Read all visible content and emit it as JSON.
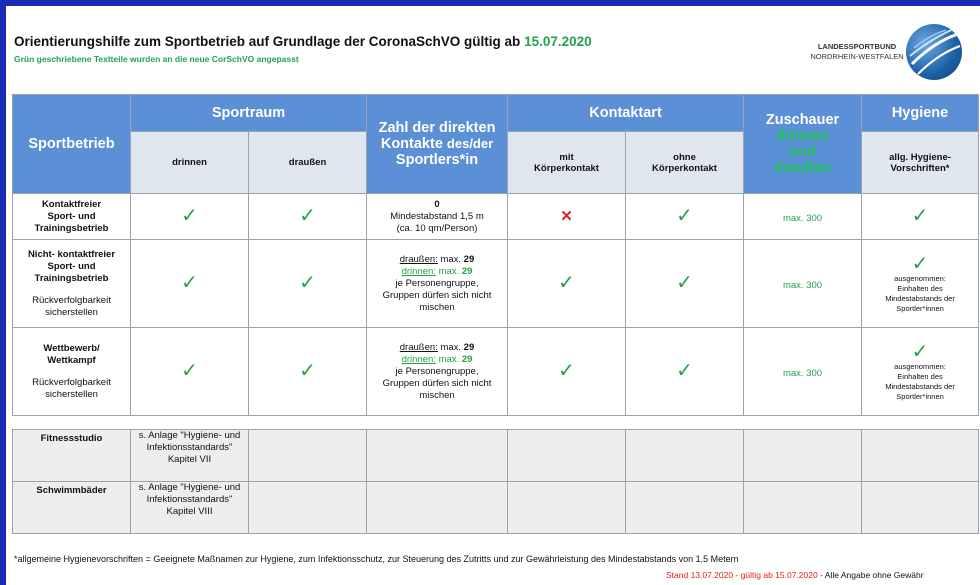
{
  "title_main": "Orientierungshilfe zum Sportbetrieb auf Grundlage der CoronaSchVO gültig ab",
  "title_date": "15.07.2020",
  "subtitle": "Grün geschriebene Textteile wurden an die neue CorSchVO angepasst",
  "logo": {
    "line1": "LANDESSPORTBUND",
    "line2": "NORDRHEIN-WESTFALEN"
  },
  "colors": {
    "header_blue": "#5b8fd6",
    "green": "#22a34a",
    "red": "#e0231c",
    "frame": "#1a2bb8"
  },
  "headers": {
    "sportbetrieb": "Sportbetrieb",
    "sportraum": "Sportraum",
    "kontakte_1": "Zahl der direkten",
    "kontakte_2": "Kontakte",
    "kontakte_3": "des/der",
    "kontakte_4": "Sportlers*in",
    "kontaktart": "Kontaktart",
    "zuschauer": "Zuschauer",
    "zuschauer_grn1": "drinnen",
    "zuschauer_grn2": "und",
    "zuschauer_grn3": "draußen",
    "hygiene": "Hygiene"
  },
  "subheaders": {
    "drinnen": "drinnen",
    "draussen": "draußen",
    "mit_1": "mit",
    "mit_2": "Körperkontakt",
    "ohne_1": "ohne",
    "ohne_2": "Körperkontakt",
    "hyg_1": "allg. Hygiene-",
    "hyg_2": "Vorschriften*"
  },
  "rows": [
    {
      "label_1": "Kontaktfreier",
      "label_2": "Sport- und",
      "label_3": "Trainingsbetrieb",
      "kontakte_value": "0",
      "kontakte_l2": "Mindestabstand 1,5 m",
      "kontakte_l3": "(ca. 10 qm/Person)",
      "zuschauer": "max. 300"
    },
    {
      "label_1": "Nicht- kontaktfreier",
      "label_2": "Sport- und",
      "label_3": "Trainingsbetrieb",
      "note_1": "Rückverfolgbarkeit",
      "note_2": "sicherstellen",
      "out_label": "draußen:",
      "out_val_pre": "max.",
      "out_val": "29",
      "in_label": "drinnen:",
      "in_val_pre": "max.",
      "in_val": "29",
      "group_1": "je Personengruppe,",
      "group_2": "Gruppen dürfen sich nicht",
      "group_3": "mischen",
      "zuschauer": "max. 300",
      "hyg_1": "ausgenommen:",
      "hyg_2": "Einhalten des",
      "hyg_3": "Mindestabstands der",
      "hyg_4": "Sportler*innen"
    },
    {
      "label_1": "Wettbewerb/",
      "label_2": "Wettkampf",
      "note_1": "Rückverfolgbarkeit",
      "note_2": "sicherstellen",
      "out_label": "draußen:",
      "out_val_pre": "max.",
      "out_val": "29",
      "in_label": "drinnen:",
      "in_val_pre": "max.",
      "in_val": "29",
      "group_1": "je Personengruppe,",
      "group_2": "Gruppen dürfen sich nicht",
      "group_3": "mischen",
      "zuschauer": "max. 300",
      "hyg_1": "ausgenommen:",
      "hyg_2": "Einhalten des",
      "hyg_3": "Mindestabstands der",
      "hyg_4": "Sportler*innen"
    }
  ],
  "extra_rows": [
    {
      "label": "Fitnessstudio",
      "ref_1": "s. Anlage \"Hygiene- und",
      "ref_2": "Infektionsstandards\"",
      "ref_3": "Kapitel VII"
    },
    {
      "label": "Schwimmbäder",
      "ref_1": "s. Anlage \"Hygiene- und",
      "ref_2": "Infektionsstandards\"",
      "ref_3": "Kapitel VIII"
    }
  ],
  "footnote": "*allgemeine Hygienevorschriften = Geeignete Maßnamen zur Hygiene, zum Infektionsschutz, zur Steuerung des Zutritts und zur Gewährleistung des Mindestabstands von 1,5 Metern",
  "stand_red": "Stand 13.07.2020 - gültig ab 15.07.2020",
  "stand_black": " - Alle Angabe ohne Gewähr",
  "check_glyph": "✓",
  "cross_glyph": "✕"
}
